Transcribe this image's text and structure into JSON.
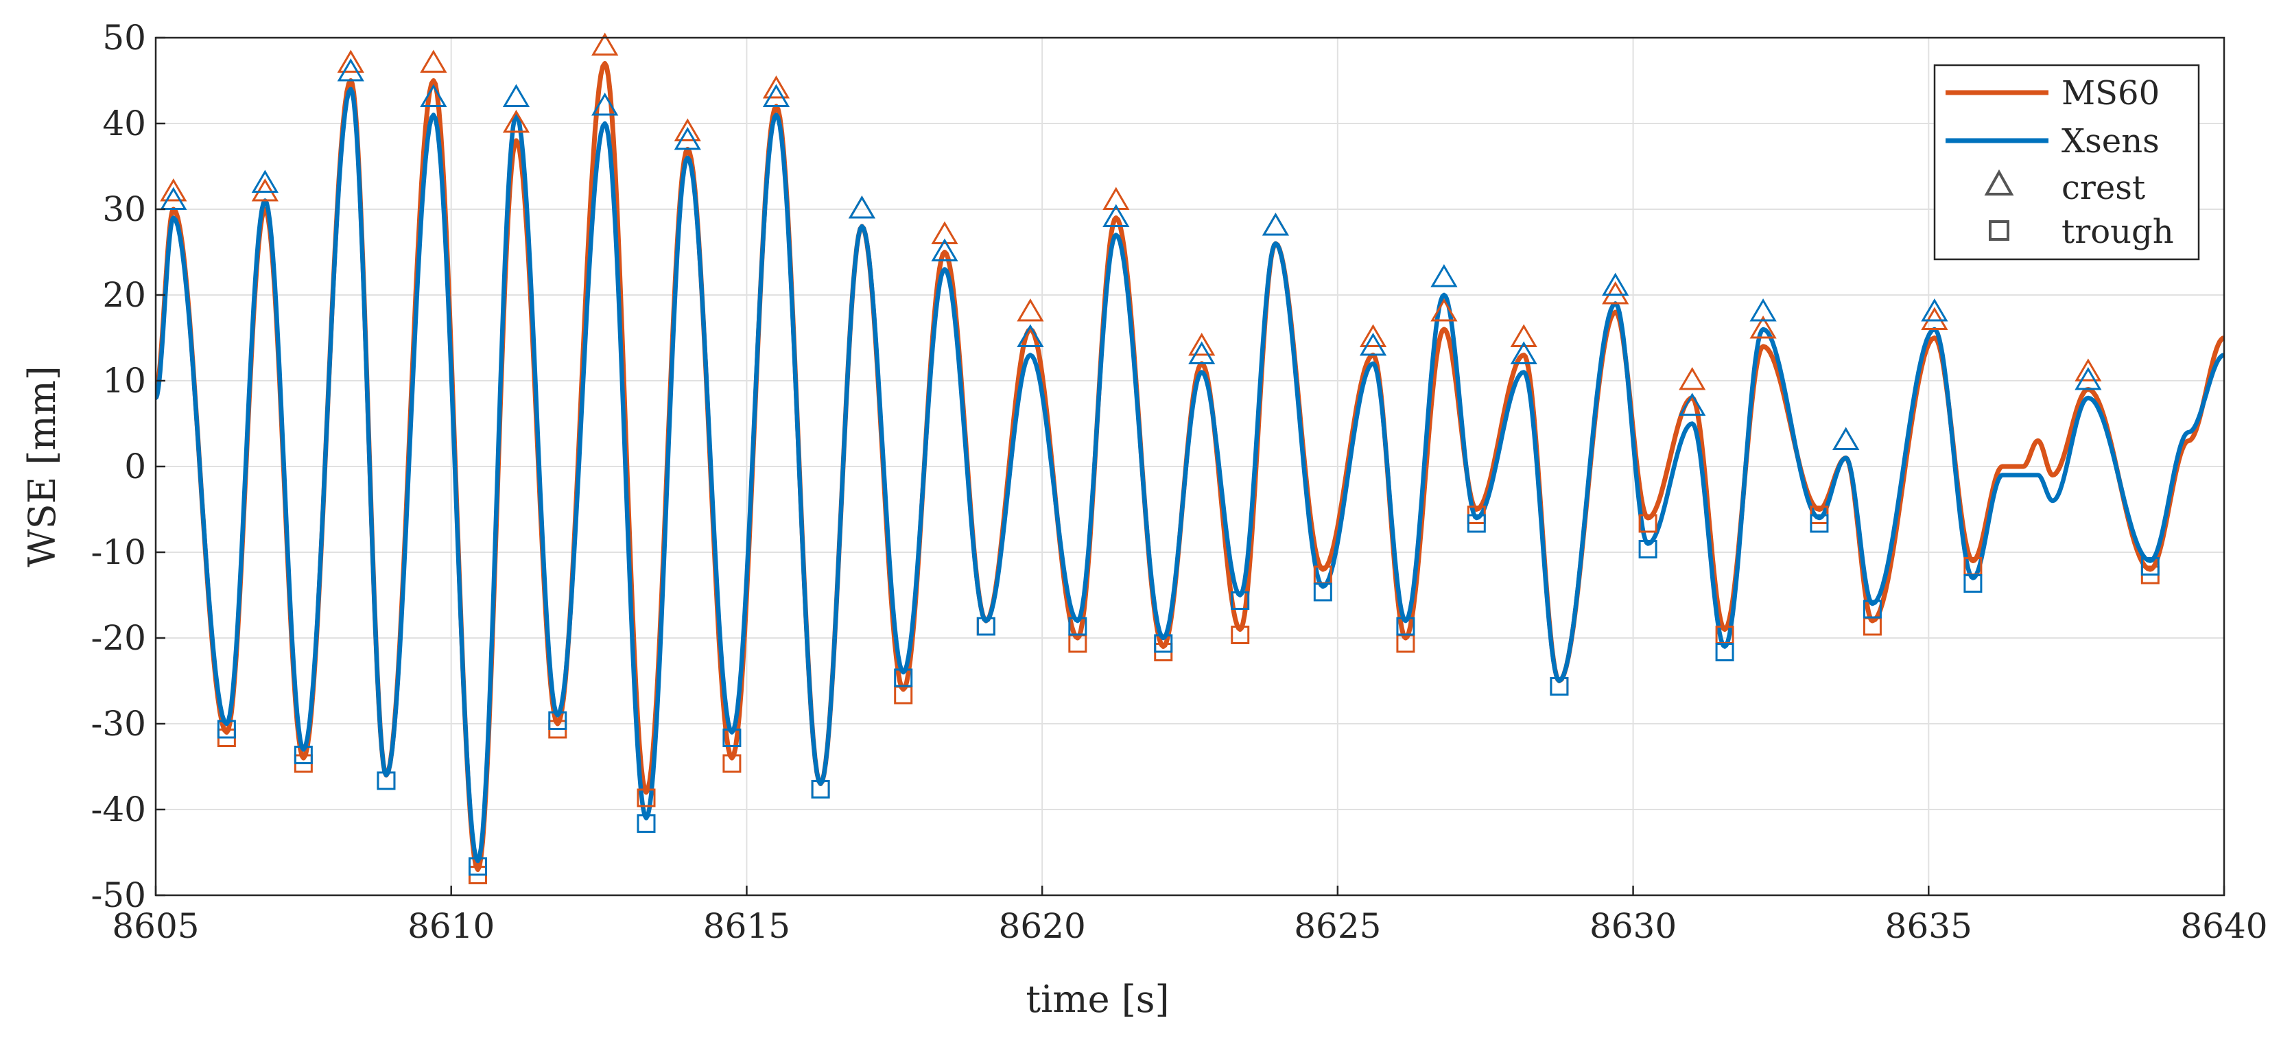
{
  "chart_data": {
    "type": "line",
    "xlabel": "time [s]",
    "ylabel": "WSE [mm]",
    "xlim": [
      8605,
      8640
    ],
    "ylim": [
      -50,
      50
    ],
    "xticks": [
      8605,
      8610,
      8615,
      8620,
      8625,
      8630,
      8635,
      8640
    ],
    "yticks": [
      -50,
      -40,
      -30,
      -20,
      -10,
      0,
      10,
      20,
      30,
      40,
      50
    ],
    "grid": true,
    "legend_position": "top-right",
    "legend": [
      "MS60",
      "Xsens",
      "crest",
      "trough"
    ],
    "colors": {
      "MS60": "#D95319",
      "Xsens": "#0072BD",
      "marker_legend": "#555555"
    },
    "series": [
      {
        "name": "MS60",
        "color": "#D95319",
        "extrema": [
          [
            8605.0,
            9
          ],
          [
            8605.3,
            30
          ],
          [
            8606.2,
            -31
          ],
          [
            8606.85,
            30
          ],
          [
            8607.5,
            -34
          ],
          [
            8608.3,
            45
          ],
          [
            8608.9,
            -36
          ],
          [
            8609.7,
            45
          ],
          [
            8610.45,
            -47
          ],
          [
            8611.1,
            38
          ],
          [
            8611.8,
            -30
          ],
          [
            8612.6,
            47
          ],
          [
            8613.3,
            -38
          ],
          [
            8614.0,
            37
          ],
          [
            8614.75,
            -34
          ],
          [
            8615.5,
            42
          ],
          [
            8616.25,
            -37
          ],
          [
            8616.95,
            28
          ],
          [
            8617.65,
            -26
          ],
          [
            8618.35,
            25
          ],
          [
            8619.05,
            -18
          ],
          [
            8619.8,
            16
          ],
          [
            8620.6,
            -20
          ],
          [
            8621.25,
            29
          ],
          [
            8622.05,
            -21
          ],
          [
            8622.7,
            12
          ],
          [
            8623.35,
            -19
          ],
          [
            8623.95,
            26
          ],
          [
            8624.75,
            -12
          ],
          [
            8625.6,
            13
          ],
          [
            8626.15,
            -20
          ],
          [
            8626.8,
            16
          ],
          [
            8627.35,
            -5
          ],
          [
            8628.15,
            13
          ],
          [
            8628.75,
            -25
          ],
          [
            8629.7,
            18
          ],
          [
            8630.25,
            -6
          ],
          [
            8631.0,
            8
          ],
          [
            8631.55,
            -19
          ],
          [
            8632.2,
            14
          ],
          [
            8633.15,
            -5
          ],
          [
            8633.6,
            1
          ],
          [
            8634.05,
            -18
          ],
          [
            8635.1,
            15
          ],
          [
            8635.75,
            -11
          ],
          [
            8636.25,
            0
          ],
          [
            8636.6,
            0
          ],
          [
            8636.85,
            3
          ],
          [
            8637.1,
            -1
          ],
          [
            8637.7,
            9
          ],
          [
            8638.75,
            -12
          ],
          [
            8639.4,
            3
          ],
          [
            8640.0,
            15
          ]
        ]
      },
      {
        "name": "Xsens",
        "color": "#0072BD",
        "extrema": [
          [
            8605.0,
            8
          ],
          [
            8605.3,
            29
          ],
          [
            8606.2,
            -30
          ],
          [
            8606.85,
            31
          ],
          [
            8607.5,
            -33
          ],
          [
            8608.3,
            44
          ],
          [
            8608.9,
            -36
          ],
          [
            8609.7,
            41
          ],
          [
            8610.45,
            -46
          ],
          [
            8611.1,
            41
          ],
          [
            8611.8,
            -29
          ],
          [
            8612.6,
            40
          ],
          [
            8613.3,
            -41
          ],
          [
            8614.0,
            36
          ],
          [
            8614.75,
            -31
          ],
          [
            8615.5,
            41
          ],
          [
            8616.25,
            -37
          ],
          [
            8616.95,
            28
          ],
          [
            8617.65,
            -24
          ],
          [
            8618.35,
            23
          ],
          [
            8619.05,
            -18
          ],
          [
            8619.8,
            13
          ],
          [
            8620.6,
            -18
          ],
          [
            8621.25,
            27
          ],
          [
            8622.05,
            -20
          ],
          [
            8622.7,
            11
          ],
          [
            8623.35,
            -15
          ],
          [
            8623.95,
            26
          ],
          [
            8624.75,
            -14
          ],
          [
            8625.6,
            12
          ],
          [
            8626.15,
            -18
          ],
          [
            8626.8,
            20
          ],
          [
            8627.35,
            -6
          ],
          [
            8628.15,
            11
          ],
          [
            8628.75,
            -25
          ],
          [
            8629.7,
            19
          ],
          [
            8630.25,
            -9
          ],
          [
            8631.0,
            5
          ],
          [
            8631.55,
            -21
          ],
          [
            8632.2,
            16
          ],
          [
            8633.15,
            -6
          ],
          [
            8633.6,
            1
          ],
          [
            8634.05,
            -16
          ],
          [
            8635.1,
            16
          ],
          [
            8635.75,
            -13
          ],
          [
            8636.25,
            -1
          ],
          [
            8636.6,
            -1
          ],
          [
            8636.85,
            -1
          ],
          [
            8637.1,
            -4
          ],
          [
            8637.7,
            8
          ],
          [
            8638.75,
            -11
          ],
          [
            8639.4,
            4
          ],
          [
            8640.0,
            13
          ]
        ]
      }
    ]
  }
}
